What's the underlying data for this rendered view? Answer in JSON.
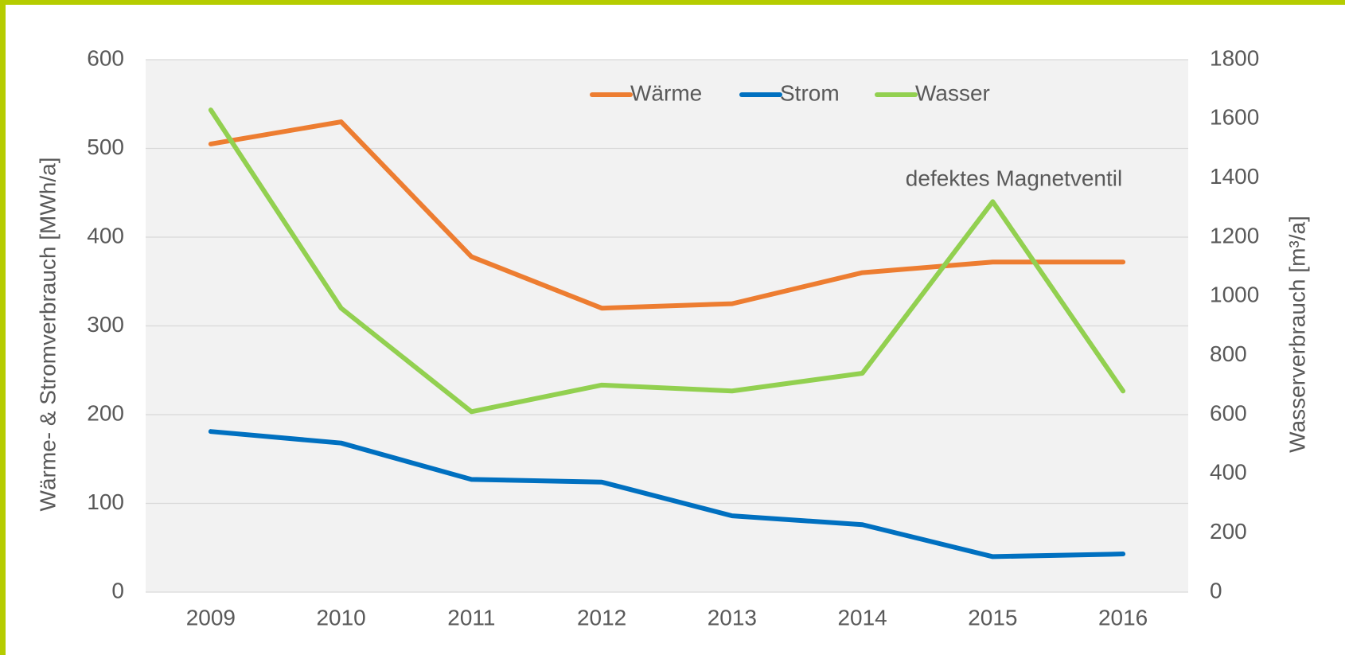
{
  "chart_data": {
    "type": "line",
    "ylabel": "Wärme- & Stromverbrauch [MWh/a]",
    "y2label": "Wasserverbrauch [m³/a]",
    "annotation": "defektes Magnetventil",
    "categories": [
      "2009",
      "2010",
      "2011",
      "2012",
      "2013",
      "2014",
      "2015",
      "2016"
    ],
    "series": [
      {
        "name": "Wärme",
        "color": "#ed7d31",
        "values": [
          505,
          530,
          378,
          320,
          325,
          360,
          372,
          372
        ]
      },
      {
        "name": "Strom",
        "color": "#0070c0",
        "values": [
          181,
          168,
          127,
          124,
          86,
          76,
          40,
          43
        ]
      },
      {
        "name": "Wasser",
        "color": "#92d050",
        "axis": "y2",
        "values": [
          1630,
          960,
          610,
          700,
          680,
          740,
          1320,
          680
        ]
      }
    ],
    "ylim": [
      0,
      600
    ],
    "yticks": [
      0,
      100,
      200,
      300,
      400,
      500,
      600
    ],
    "y2lim": [
      0,
      1800
    ],
    "y2ticks": [
      0,
      200,
      400,
      600,
      800,
      1000,
      1200,
      1400,
      1600,
      1800
    ],
    "grid": true,
    "legend": "top"
  }
}
